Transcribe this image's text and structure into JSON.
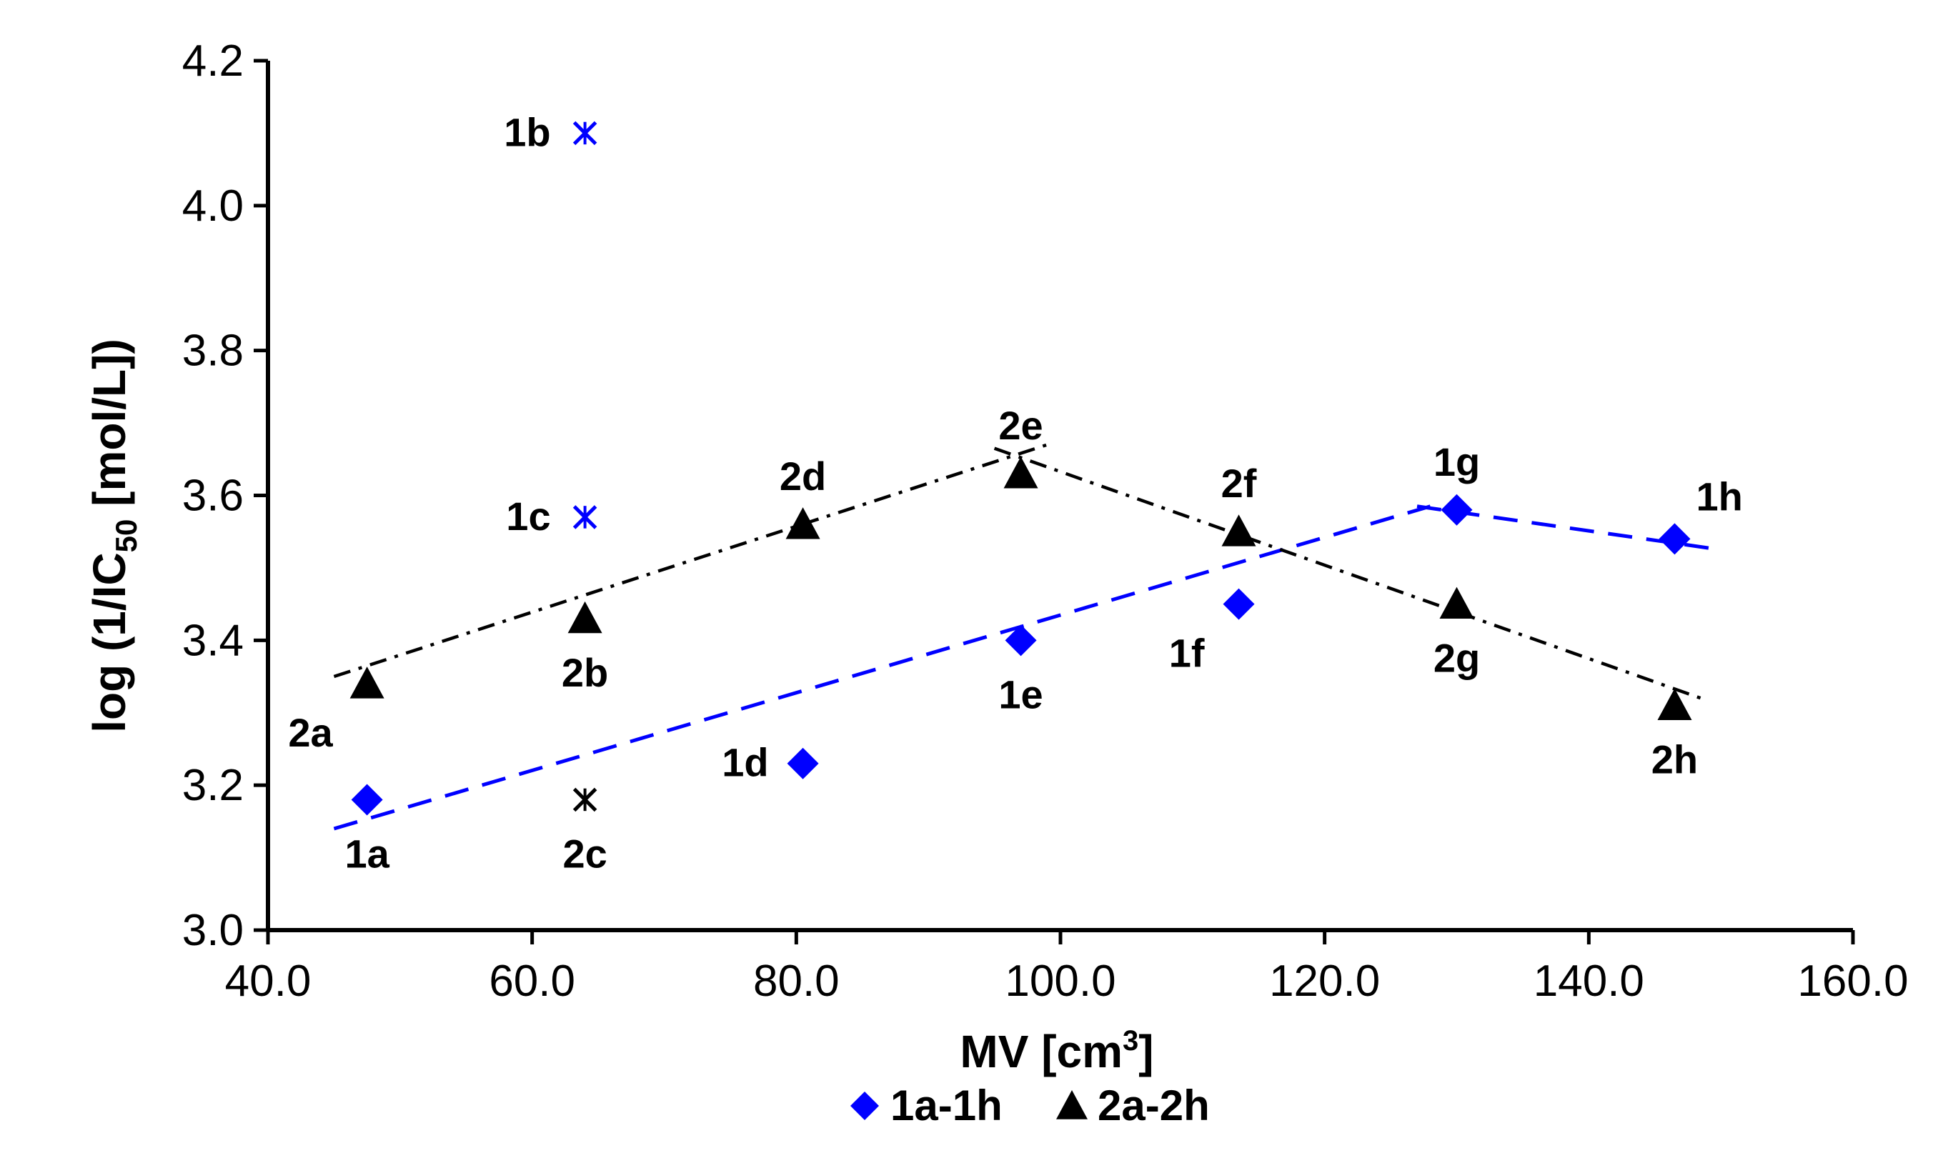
{
  "chart_data": {
    "type": "scatter",
    "xlabel": "MV [cm",
    "xlabel_sup": "3",
    "xlabel_end": "]",
    "ylabel": "log (1/IC",
    "ylabel_sub": "50",
    "ylabel_end": " [mol/L])",
    "xlim": [
      40.0,
      160.0
    ],
    "ylim": [
      3.0,
      4.2
    ],
    "xticks": [
      40.0,
      60.0,
      80.0,
      100.0,
      120.0,
      140.0,
      160.0
    ],
    "xtick_labels": [
      "40.0",
      "60.0",
      "80.0",
      "100.0",
      "120.0",
      "140.0",
      "160.0"
    ],
    "yticks": [
      3.0,
      3.2,
      3.4,
      3.6,
      3.8,
      4.0,
      4.2
    ],
    "ytick_labels": [
      "3.0",
      "3.2",
      "3.4",
      "3.6",
      "3.8",
      "4.0",
      "4.2"
    ],
    "colors": {
      "series1": "#0000ff",
      "series2": "#000000",
      "axis": "#000000"
    },
    "series": [
      {
        "name": "1a-1h",
        "marker": "diamond",
        "color": "#0000ff",
        "points": [
          {
            "label": "1a",
            "x": 47.5,
            "y": 3.18,
            "pos": "below"
          },
          {
            "label": "1d",
            "x": 80.5,
            "y": 3.23,
            "pos": "left"
          },
          {
            "label": "1e",
            "x": 97.0,
            "y": 3.4,
            "pos": "below"
          },
          {
            "label": "1f",
            "x": 113.5,
            "y": 3.45,
            "pos": "below-left"
          },
          {
            "label": "1g",
            "x": 130.0,
            "y": 3.58,
            "pos": "above"
          },
          {
            "label": "1h",
            "x": 146.5,
            "y": 3.54,
            "pos": "above-right"
          }
        ]
      },
      {
        "name": "2a-2h",
        "marker": "triangle",
        "color": "#000000",
        "points": [
          {
            "label": "2a",
            "x": 47.5,
            "y": 3.34,
            "pos": "below-left"
          },
          {
            "label": "2b",
            "x": 64.0,
            "y": 3.43,
            "pos": "below"
          },
          {
            "label": "2d",
            "x": 80.5,
            "y": 3.56,
            "pos": "above"
          },
          {
            "label": "2e",
            "x": 97.0,
            "y": 3.63,
            "pos": "above"
          },
          {
            "label": "2f",
            "x": 113.5,
            "y": 3.55,
            "pos": "above"
          },
          {
            "label": "2g",
            "x": 130.0,
            "y": 3.45,
            "pos": "below"
          },
          {
            "label": "2h",
            "x": 146.5,
            "y": 3.31,
            "pos": "below"
          }
        ]
      }
    ],
    "outliers": [
      {
        "label": "1b",
        "x": 64.0,
        "y": 4.1,
        "marker": "star",
        "color": "#0000ff",
        "pos": "left"
      },
      {
        "label": "1c",
        "x": 64.0,
        "y": 3.57,
        "marker": "star",
        "color": "#0000ff",
        "pos": "left"
      },
      {
        "label": "2c",
        "x": 64.0,
        "y": 3.18,
        "marker": "star",
        "color": "#000000",
        "pos": "below"
      }
    ],
    "trendlines": [
      {
        "name": "1a-1g trend",
        "style": "dashed",
        "color": "#0000ff",
        "from": [
          45.0,
          3.14
        ],
        "to": [
          128.0,
          3.585
        ]
      },
      {
        "name": "1g-1h trend",
        "style": "dashed",
        "color": "#0000ff",
        "from": [
          127.0,
          3.585
        ],
        "to": [
          150.0,
          3.525
        ]
      },
      {
        "name": "2a-2e trend",
        "style": "dashdot",
        "color": "#000000",
        "from": [
          45.0,
          3.35
        ],
        "to": [
          99.0,
          3.67
        ]
      },
      {
        "name": "2e-2h trend",
        "style": "dashdot",
        "color": "#000000",
        "from": [
          95.0,
          3.665
        ],
        "to": [
          148.5,
          3.32
        ]
      }
    ],
    "legend": {
      "placement": "bottom-center",
      "entries": [
        {
          "label": "1a-1h",
          "marker": "diamond",
          "color": "#0000ff"
        },
        {
          "label": "2a-2h",
          "marker": "triangle",
          "color": "#000000"
        }
      ]
    },
    "grid": false
  }
}
